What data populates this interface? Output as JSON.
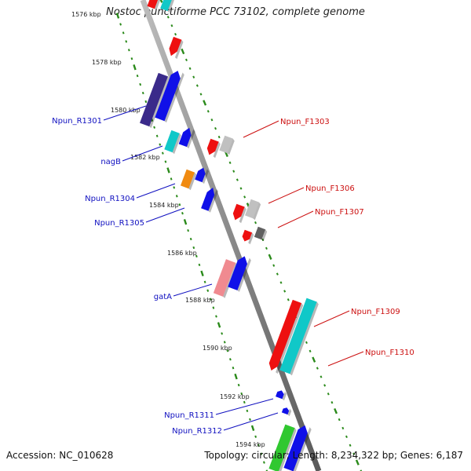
{
  "header": {
    "title": "Nostoc punctiforme PCC 73102, complete genome"
  },
  "footer": {
    "accession": "Accession: NC_010628",
    "summary": "Topology: circular; Length: 8,234,322 bp; Genes: 6,187"
  },
  "colors": {
    "blue": "#1010e8",
    "purple": "#3a2a8a",
    "cyan": "#10c8c8",
    "red": "#ee1010",
    "orange": "#f08a10",
    "pink": "#f08a90",
    "green": "#30c830",
    "lightgray": "#c0c0c0",
    "darkgray": "#606060",
    "backbone": "#8a8a8a",
    "ticks": "#2a8a1a",
    "reverse_label": "#1010c0",
    "forward_label": "#cc1010"
  },
  "map": {
    "position_labels": [
      "1576 kbp",
      "1578 kbp",
      "1580 kbp",
      "1582 kbp",
      "1584 kbp",
      "1586 kbp",
      "1588 kbp",
      "1590 kbp",
      "1592 kbp",
      "1594 kbp"
    ],
    "reverse_genes": [
      {
        "label": "Npun_R1301",
        "color": "purple"
      },
      {
        "label": "nagB",
        "color": "cyan"
      },
      {
        "label": "Npun_R1304",
        "color": "orange"
      },
      {
        "label": "Npun_R1305",
        "color": "blue"
      },
      {
        "label": "gatA",
        "color": "pink"
      },
      {
        "label": "Npun_R1311",
        "color": "blue"
      },
      {
        "label": "Npun_R1312",
        "color": "blue"
      }
    ],
    "forward_genes": [
      {
        "label": "Npun_F1303",
        "color": "red"
      },
      {
        "label": "Npun_F1306",
        "color": "red"
      },
      {
        "label": "Npun_F1307",
        "color": "red"
      },
      {
        "label": "Npun_F1309",
        "color": "red"
      },
      {
        "label": "Npun_F1310",
        "color": "cyan"
      }
    ]
  }
}
